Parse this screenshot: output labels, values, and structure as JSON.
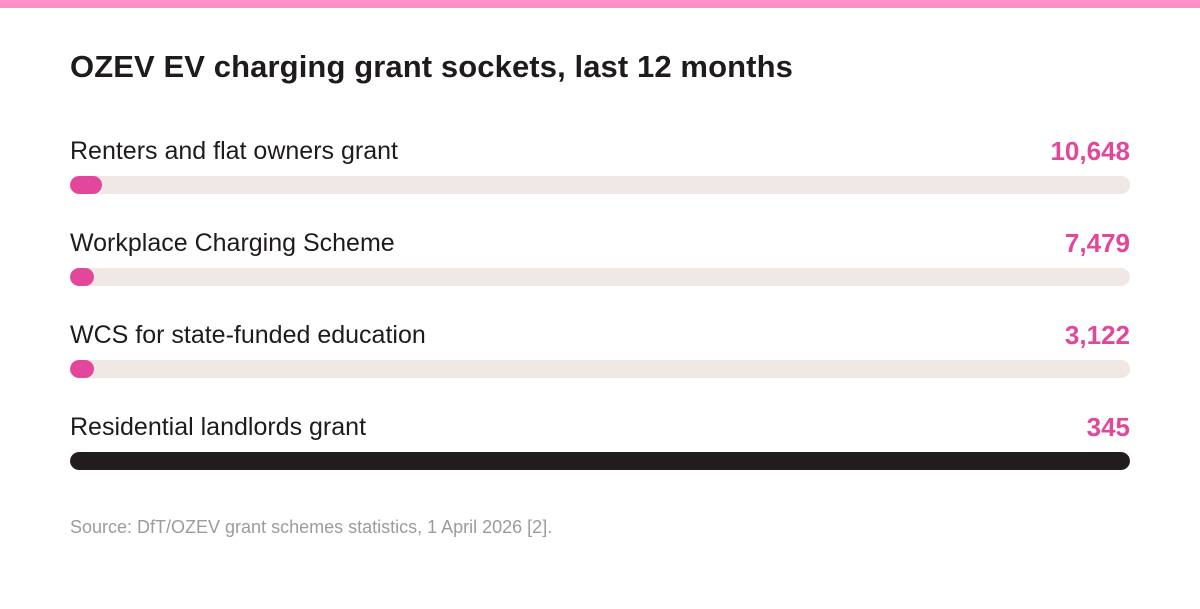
{
  "header": {
    "title": "OZEV EV charging grant sockets, last 12 months"
  },
  "chart_data": {
    "type": "bar",
    "orientation": "horizontal",
    "title": "OZEV EV charging grant sockets, last 12 months",
    "categories": [
      "Renters and flat owners grant",
      "Workplace Charging Scheme",
      "WCS for state-funded education",
      "Residential landlords grant"
    ],
    "values": [
      10648,
      7479,
      3122,
      345
    ],
    "value_labels": [
      "10,648",
      "7,479",
      "3,122",
      "345"
    ],
    "bar_fill_fraction": [
      0.03,
      0.023,
      0.023,
      1.0
    ],
    "colors": {
      "accent": "#e2479b",
      "track": "#f0e8e4",
      "dark_bar": "#211c1e",
      "top_rule": "#ff8fc8"
    },
    "grid": false,
    "legend": "none"
  },
  "footer": {
    "source": "Source: DfT/OZEV grant schemes statistics, 1 April 2026 [2]."
  }
}
